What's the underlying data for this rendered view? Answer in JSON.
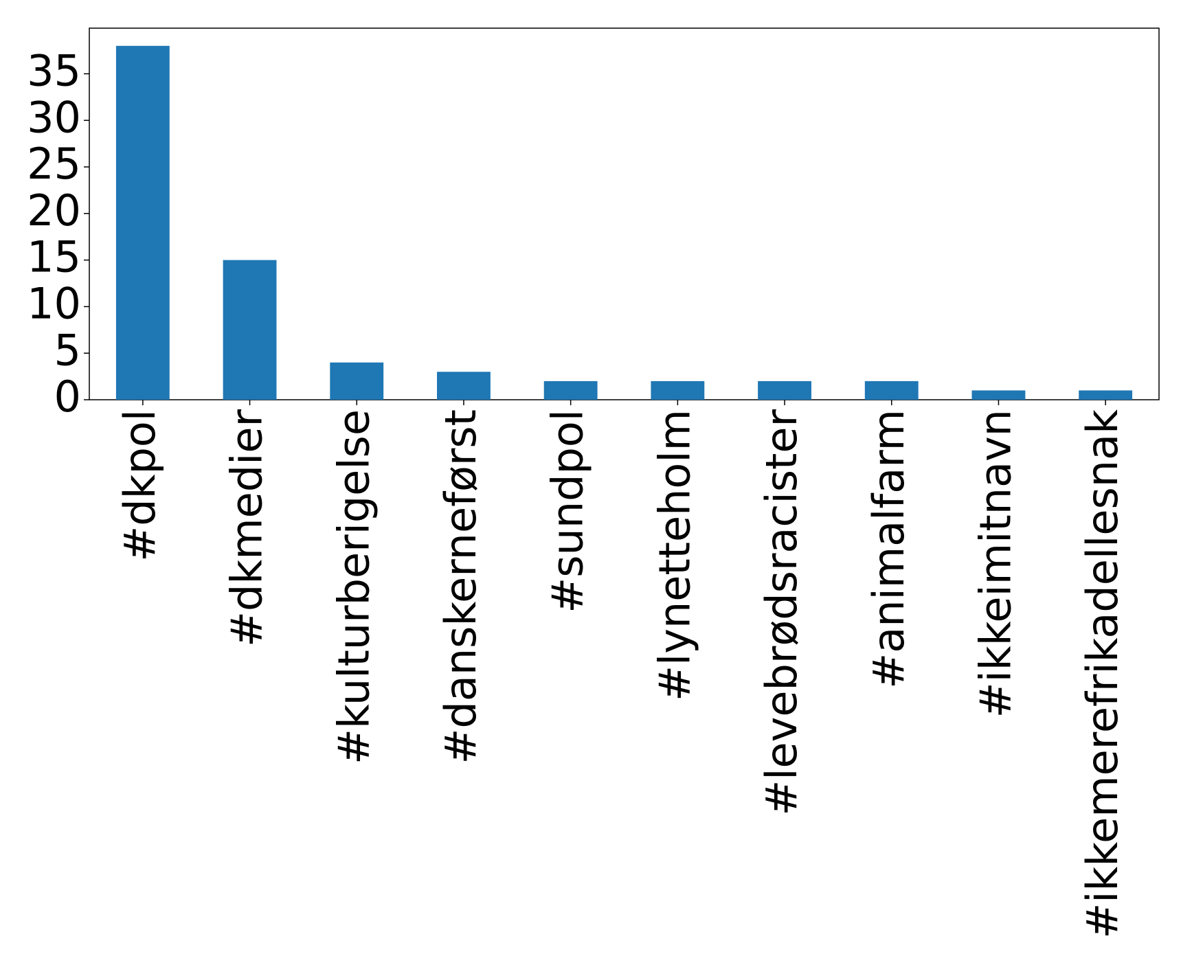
{
  "chart_data": {
    "type": "bar",
    "categories": [
      "#dkpol",
      "#dkmedier",
      "#kulturberigelse",
      "#danskerneførst",
      "#sundpol",
      "#lynetteholm",
      "#levebrødsracister",
      "#animalfarm",
      "#ikkeimitnavn",
      "#ikkemerefrikadellesnak"
    ],
    "values": [
      38,
      15,
      4,
      3,
      2,
      2,
      2,
      2,
      1,
      1
    ],
    "color": "#1f77b4",
    "ylim": [
      0,
      39.9
    ],
    "yticks": [
      0,
      5,
      10,
      15,
      20,
      25,
      30,
      35
    ],
    "grid": false
  }
}
